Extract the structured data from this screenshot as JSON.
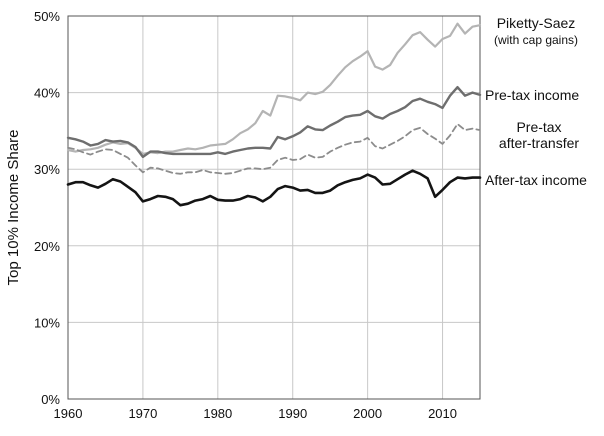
{
  "chart_data": {
    "type": "line",
    "title": "",
    "xlabel": "",
    "ylabel": "Top 10% Income Share",
    "xlim": [
      1960,
      2015
    ],
    "ylim": [
      0,
      50
    ],
    "x_ticks": [
      1960,
      1970,
      1980,
      1990,
      2000,
      2010
    ],
    "y_ticks": [
      0,
      10,
      20,
      30,
      40,
      50
    ],
    "y_tick_labels": [
      "0%",
      "10%",
      "20%",
      "30%",
      "40%",
      "50%"
    ],
    "grid": true,
    "x": [
      1960,
      1961,
      1962,
      1963,
      1964,
      1965,
      1966,
      1967,
      1968,
      1969,
      1970,
      1971,
      1972,
      1973,
      1974,
      1975,
      1976,
      1977,
      1978,
      1979,
      1980,
      1981,
      1982,
      1983,
      1984,
      1985,
      1986,
      1987,
      1988,
      1989,
      1990,
      1991,
      1992,
      1993,
      1994,
      1995,
      1996,
      1997,
      1998,
      1999,
      2000,
      2001,
      2002,
      2003,
      2004,
      2005,
      2006,
      2007,
      2008,
      2009,
      2010,
      2011,
      2012,
      2013,
      2014,
      2015
    ],
    "series": [
      {
        "name": "Piketty-Saez",
        "name_line2": "(with cap gains)",
        "color": "#b4b4b4",
        "style": "solid",
        "values": [
          32.5,
          32.3,
          32.5,
          32.6,
          32.8,
          33.2,
          33.5,
          33.3,
          33.4,
          32.8,
          32.0,
          32.2,
          32.1,
          32.3,
          32.3,
          32.5,
          32.7,
          32.6,
          32.8,
          33.1,
          33.2,
          33.3,
          33.9,
          34.7,
          35.2,
          36.0,
          37.6,
          37.0,
          39.6,
          39.5,
          39.3,
          39.0,
          40.0,
          39.8,
          40.1,
          41.0,
          42.2,
          43.3,
          44.1,
          44.7,
          45.4,
          43.4,
          43.0,
          43.6,
          45.2,
          46.3,
          47.5,
          47.9,
          46.9,
          46.0,
          47.0,
          47.4,
          49.0,
          47.7,
          48.6,
          48.8
        ]
      },
      {
        "name": "Pre-tax income",
        "color": "#6e6e6e",
        "style": "solid",
        "values": [
          34.1,
          33.9,
          33.6,
          33.1,
          33.3,
          33.8,
          33.6,
          33.7,
          33.5,
          32.9,
          31.6,
          32.3,
          32.3,
          32.1,
          32.0,
          32.0,
          32.0,
          32.0,
          32.0,
          32.0,
          32.2,
          32.0,
          32.3,
          32.5,
          32.7,
          32.8,
          32.8,
          32.7,
          34.2,
          33.9,
          34.3,
          34.8,
          35.6,
          35.2,
          35.1,
          35.7,
          36.2,
          36.8,
          37.0,
          37.1,
          37.6,
          36.9,
          36.6,
          37.2,
          37.6,
          38.1,
          38.9,
          39.2,
          38.8,
          38.5,
          38.0,
          39.6,
          40.7,
          39.6,
          40.0,
          39.7
        ]
      },
      {
        "name": "Pre-tax",
        "name_line2": "after-transfer",
        "color": "#8c8c8c",
        "style": "dashed",
        "values": [
          32.8,
          32.6,
          32.2,
          31.9,
          32.3,
          32.6,
          32.5,
          32.0,
          31.5,
          30.5,
          29.6,
          30.2,
          30.1,
          29.8,
          29.5,
          29.4,
          29.6,
          29.6,
          29.9,
          29.6,
          29.5,
          29.4,
          29.5,
          29.8,
          30.1,
          30.1,
          30.0,
          30.2,
          31.2,
          31.5,
          31.2,
          31.3,
          31.9,
          31.5,
          31.6,
          32.3,
          32.8,
          33.2,
          33.5,
          33.6,
          34.1,
          33.0,
          32.7,
          33.2,
          33.7,
          34.3,
          35.1,
          35.4,
          34.6,
          34.0,
          33.3,
          34.4,
          35.9,
          35.1,
          35.3,
          35.1
        ]
      },
      {
        "name": "After-tax income",
        "color": "#141414",
        "style": "solid",
        "values": [
          28.0,
          28.3,
          28.3,
          27.9,
          27.6,
          28.1,
          28.7,
          28.4,
          27.7,
          27.0,
          25.8,
          26.1,
          26.5,
          26.4,
          26.1,
          25.3,
          25.5,
          25.9,
          26.1,
          26.5,
          26.0,
          25.9,
          25.9,
          26.1,
          26.5,
          26.3,
          25.8,
          26.4,
          27.4,
          27.8,
          27.6,
          27.2,
          27.3,
          26.9,
          26.9,
          27.2,
          27.9,
          28.3,
          28.6,
          28.8,
          29.3,
          28.9,
          28.0,
          28.1,
          28.7,
          29.3,
          29.8,
          29.4,
          28.8,
          26.4,
          27.3,
          28.3,
          28.9,
          28.8,
          28.9,
          28.9
        ]
      }
    ]
  }
}
